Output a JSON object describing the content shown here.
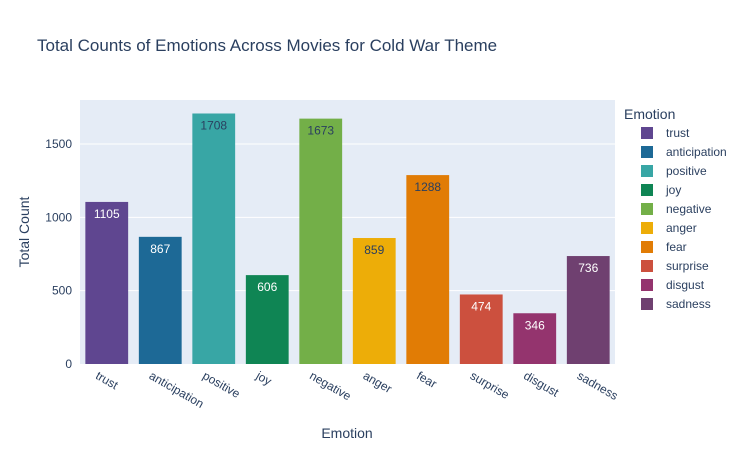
{
  "chart_data": {
    "type": "bar",
    "title": "Total Counts of Emotions Across Movies for Cold War Theme",
    "xlabel": "Emotion",
    "ylabel": "Total Count",
    "ylim": [
      0,
      1800
    ],
    "yticks": [
      0,
      500,
      1000,
      1500
    ],
    "grid": true,
    "legend_title": "Emotion",
    "legend_position": "right",
    "categories": [
      "trust",
      "anticipation",
      "positive",
      "joy",
      "negative",
      "anger",
      "fear",
      "surprise",
      "disgust",
      "sadness"
    ],
    "values": [
      1105,
      867,
      1708,
      606,
      1673,
      859,
      1288,
      474,
      346,
      736
    ],
    "colors": [
      "#5f4690",
      "#1d6996",
      "#38a6a5",
      "#0f8554",
      "#73af48",
      "#edad08",
      "#e17c05",
      "#cc503e",
      "#94346e",
      "#6f4070"
    ],
    "label_colors": [
      "#ffffff",
      "#ffffff",
      "#2a3f5f",
      "#ffffff",
      "#2a3f5f",
      "#2a3f5f",
      "#2a3f5f",
      "#ffffff",
      "#ffffff",
      "#ffffff"
    ],
    "plot_background": "#e5ecf6",
    "gridline_color": "#ffffff"
  }
}
